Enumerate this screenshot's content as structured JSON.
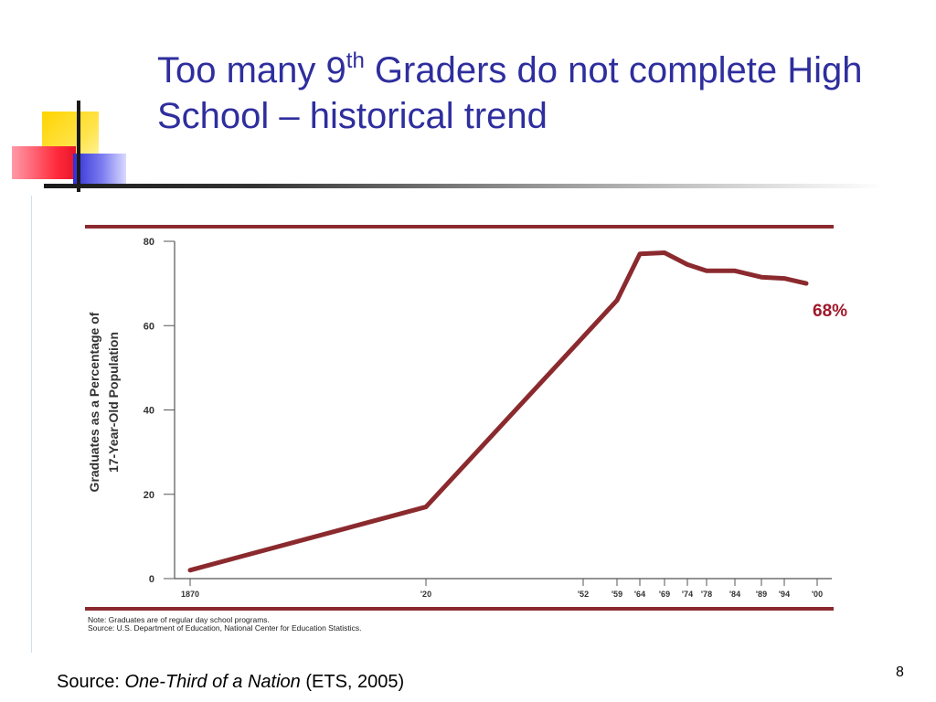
{
  "slide": {
    "title_part1": "Too many 9",
    "title_sup": "th",
    "title_part2": " Graders do not complete High School – historical trend",
    "source_prefix": "Source: ",
    "source_title": "One-Third of a Nation",
    "source_suffix": " (ETS, 2005)",
    "page_number": "8"
  },
  "colors": {
    "title": "#2e2e9e",
    "series_line": "#8b2a2e",
    "rule_lines": "#8b2a2e",
    "annotation": "#a0182a"
  },
  "chart_data": {
    "type": "line",
    "title": "",
    "xlabel": "",
    "ylabel": "Graduates as a Percentage of 17-Year-Old Population",
    "ylabel_lines": [
      "Graduates as a Percentage of",
      "17-Year-Old Population"
    ],
    "ylim": [
      0,
      80
    ],
    "yticks": [
      0,
      20,
      40,
      60,
      80
    ],
    "xlim": [
      1870,
      2000
    ],
    "xticks": [
      {
        "value": 1870,
        "label": "1870"
      },
      {
        "value": 1920,
        "label": "'20"
      },
      {
        "value": 1952,
        "label": "'52"
      },
      {
        "value": 1959,
        "label": "'59"
      },
      {
        "value": 1964,
        "label": "'64"
      },
      {
        "value": 1969,
        "label": "'69"
      },
      {
        "value": 1974,
        "label": "'74"
      },
      {
        "value": 1978,
        "label": "'78"
      },
      {
        "value": 1984,
        "label": "'84"
      },
      {
        "value": 1989,
        "label": "'89"
      },
      {
        "value": 1994,
        "label": "'94"
      },
      {
        "value": 2000,
        "label": "'00"
      }
    ],
    "grid": false,
    "series": [
      {
        "x": [
          1870,
          1920,
          1959,
          1964,
          1969,
          1974,
          1978,
          1984,
          1989,
          1994,
          1998
        ],
        "values": [
          2,
          17,
          66,
          77,
          77.3,
          74.5,
          73,
          73,
          71.5,
          71.2,
          70
        ]
      }
    ],
    "annotations": [
      {
        "text": "68%"
      }
    ],
    "notes": [
      "Note: Graduates are of regular day school programs.",
      "Source: U.S. Department of Education, National Center for Education Statistics."
    ]
  }
}
